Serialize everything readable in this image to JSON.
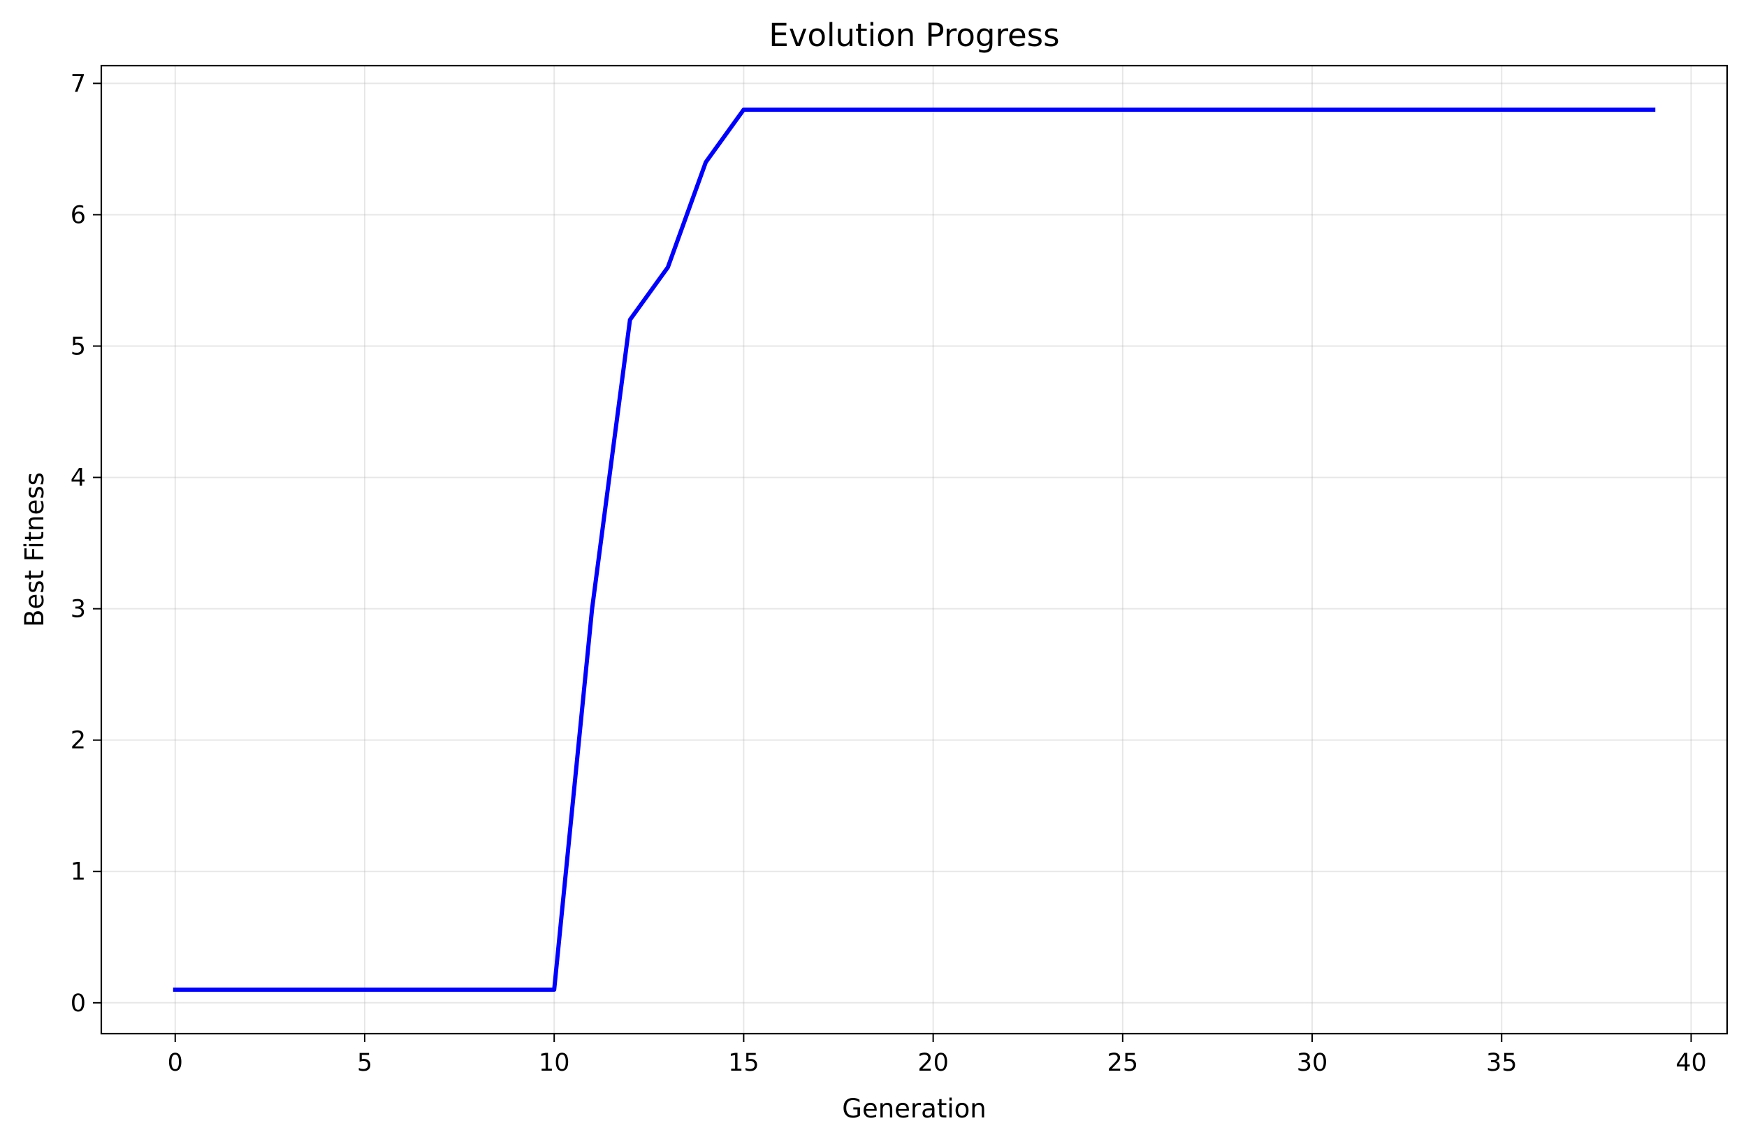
{
  "chart_data": {
    "type": "line",
    "title": "Evolution Progress",
    "xlabel": "Generation",
    "ylabel": "Best Fitness",
    "xlim": [
      -1.95,
      40.95
    ],
    "ylim": [
      -0.235,
      7.135
    ],
    "xticks": [
      0,
      5,
      10,
      15,
      20,
      25,
      30,
      35,
      40
    ],
    "yticks": [
      0,
      1,
      2,
      3,
      4,
      5,
      6,
      7
    ],
    "grid": true,
    "series": [
      {
        "color": "#0000ff",
        "x": [
          0,
          1,
          2,
          3,
          4,
          5,
          6,
          7,
          8,
          9,
          10,
          11,
          12,
          13,
          14,
          15,
          16,
          17,
          18,
          19,
          20,
          21,
          22,
          23,
          24,
          25,
          26,
          27,
          28,
          29,
          30,
          31,
          32,
          33,
          34,
          35,
          36,
          37,
          38,
          39
        ],
        "y": [
          0.1,
          0.1,
          0.1,
          0.1,
          0.1,
          0.1,
          0.1,
          0.1,
          0.1,
          0.1,
          0.1,
          3.0,
          5.2,
          5.6,
          6.4,
          6.8,
          6.8,
          6.8,
          6.8,
          6.8,
          6.8,
          6.8,
          6.8,
          6.8,
          6.8,
          6.8,
          6.8,
          6.8,
          6.8,
          6.8,
          6.8,
          6.8,
          6.8,
          6.8,
          6.8,
          6.8,
          6.8,
          6.8,
          6.8,
          6.8
        ]
      }
    ]
  }
}
